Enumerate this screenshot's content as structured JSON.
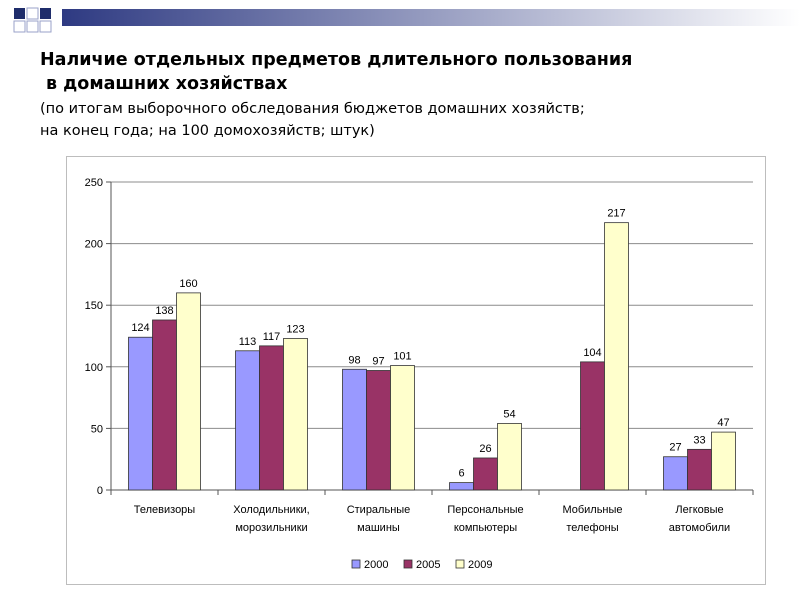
{
  "slide": {
    "title_line1": "Наличие отдельных предметов длительного пользования",
    "title_line2": "в домашних хозяйствах",
    "subtitle_line1": "(по итогам выборочного обследования бюджетов домашних хозяйств;",
    "subtitle_line2": "на конец года; на 100 домохозяйств; штук)"
  },
  "colors": {
    "deco_navy": "#1F2D6B",
    "deco_gradient_start": "#2E3A82",
    "deco_gradient_end": "#FFFFFF"
  },
  "chart_data": {
    "type": "bar",
    "title": "",
    "xlabel": "",
    "ylabel": "",
    "ylim": [
      0,
      250
    ],
    "yticks": [
      "0",
      "50",
      "100",
      "150",
      "200",
      "250"
    ],
    "grid": true,
    "legend_position": "bottom",
    "categories": [
      [
        "Телевизоры"
      ],
      [
        "Холодильники,",
        "морозильники"
      ],
      [
        "Стиральные",
        "машины"
      ],
      [
        "Персональные",
        "компьютеры"
      ],
      [
        "Мобильные",
        "телефоны"
      ],
      [
        "Легковые",
        "автомобили"
      ]
    ],
    "series": [
      {
        "name": "2000",
        "color": "#9999FF",
        "values": [
          124,
          113,
          98,
          6,
          null,
          27
        ],
        "labels": [
          "124",
          "113",
          "98",
          "6",
          "",
          "27"
        ]
      },
      {
        "name": "2005",
        "color": "#993366",
        "values": [
          138,
          117,
          97,
          26,
          104,
          33
        ],
        "labels": [
          "138",
          "117",
          "97",
          "26",
          "104",
          "33"
        ]
      },
      {
        "name": "2009",
        "color": "#FFFFCC",
        "values": [
          160,
          123,
          101,
          54,
          217,
          47
        ],
        "labels": [
          "160",
          "123",
          "101",
          "54",
          "217",
          "47"
        ]
      }
    ]
  }
}
